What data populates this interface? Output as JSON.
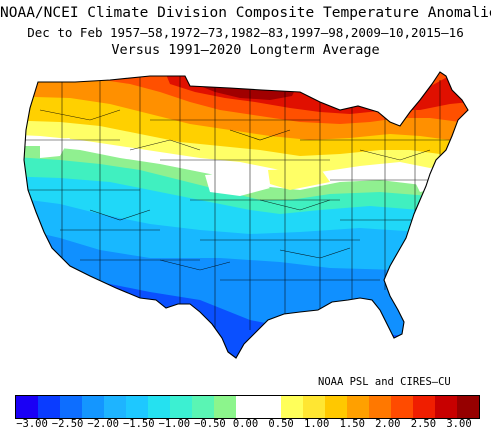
{
  "title": {
    "line1": "NOAA/NCEI Climate Division Composite Temperature Anomalies (F)",
    "line2": "Dec to Feb  1957–58,1972–73,1982–83,1997–98,2009–10,2015–16",
    "line3": "Versus 1991–2020 Longterm Average"
  },
  "credit": "NOAA PSL and CIRES–CU",
  "colorbar": {
    "colors": [
      "#1a00f5",
      "#0a3cff",
      "#0d6eff",
      "#1496ff",
      "#1eb4ff",
      "#1ec8ff",
      "#25e1f0",
      "#3cf0d2",
      "#5af5b4",
      "#8cf58c",
      "#ffffff",
      "#ffffff",
      "#ffff5a",
      "#ffe632",
      "#ffc800",
      "#ffa000",
      "#ff7800",
      "#ff4b00",
      "#f01e00",
      "#c80000",
      "#960000"
    ],
    "tick_labels": [
      "−3.00",
      "−2.50",
      "−2.00",
      "−1.50",
      "−1.00",
      "−0.50",
      "0.00",
      "0.50",
      "1.00",
      "1.50",
      "2.00",
      "2.50",
      "3.00"
    ]
  },
  "map": {
    "bands": [
      {
        "anomaly": "≥2.50",
        "color": "#a00000"
      },
      {
        "anomaly": "2.00 to 2.50",
        "color": "#e01000"
      },
      {
        "anomaly": "1.50 to 2.00",
        "color": "#ff5000"
      },
      {
        "anomaly": "1.00 to 1.50",
        "color": "#ff9000"
      },
      {
        "anomaly": "0.50 to 1.00",
        "color": "#ffd000"
      },
      {
        "anomaly": "0.00 to 0.50",
        "color": "#ffff66"
      },
      {
        "anomaly": "−0.50 to 0.00",
        "color": "#ffffff"
      },
      {
        "anomaly": "−1.00 to −0.50",
        "color": "#90f090"
      },
      {
        "anomaly": "−1.50 to −1.00",
        "color": "#40f0c0"
      },
      {
        "anomaly": "−2.00 to −1.50",
        "color": "#20d8f8"
      },
      {
        "anomaly": "−2.50 to −2.00",
        "color": "#18b8ff"
      },
      {
        "anomaly": "−3.00 to −2.50",
        "color": "#1090ff"
      },
      {
        "anomaly": "≤−3.00",
        "color": "#0a50ff"
      }
    ]
  }
}
